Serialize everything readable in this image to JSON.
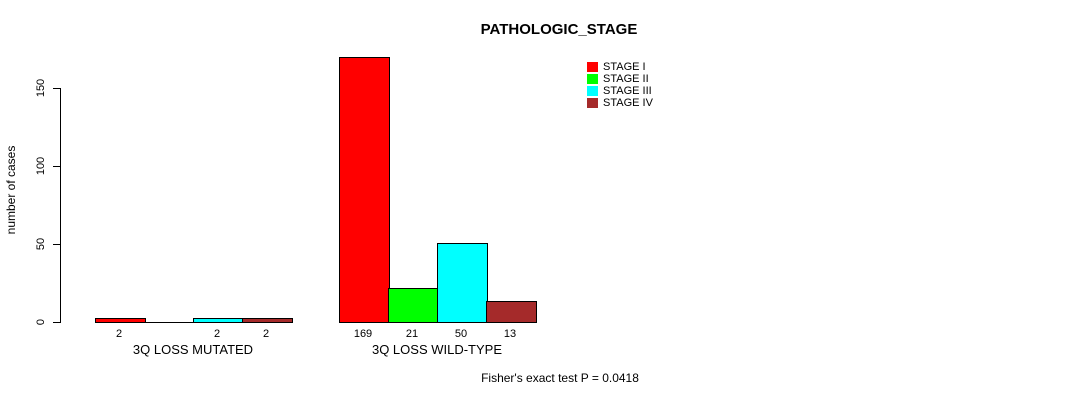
{
  "title": "PATHOLOGIC_STAGE",
  "footer": "Fisher's exact test P = 0.0418",
  "chart_data": {
    "type": "bar",
    "title": "PATHOLOGIC_STAGE",
    "xlabel": "",
    "ylabel": "number of cases",
    "yticks": [
      0,
      50,
      100,
      150
    ],
    "ylim": [
      0,
      175
    ],
    "grid": false,
    "legend_position": "top-right",
    "categories": [
      "3Q LOSS MUTATED",
      "3Q LOSS WILD-TYPE"
    ],
    "series": [
      {
        "name": "STAGE I",
        "color": "#ff0000",
        "values": [
          2,
          169
        ]
      },
      {
        "name": "STAGE II",
        "color": "#00ff00",
        "values": [
          0,
          21
        ]
      },
      {
        "name": "STAGE III",
        "color": "#00ffff",
        "values": [
          2,
          50
        ]
      },
      {
        "name": "STAGE IV",
        "color": "#a52a2a",
        "values": [
          2,
          13
        ]
      }
    ],
    "bar_labels": [
      [
        "2",
        "",
        "2",
        "2"
      ],
      [
        "169",
        "21",
        "50",
        "13"
      ]
    ],
    "annotation": "Fisher's exact test P = 0.0418"
  }
}
